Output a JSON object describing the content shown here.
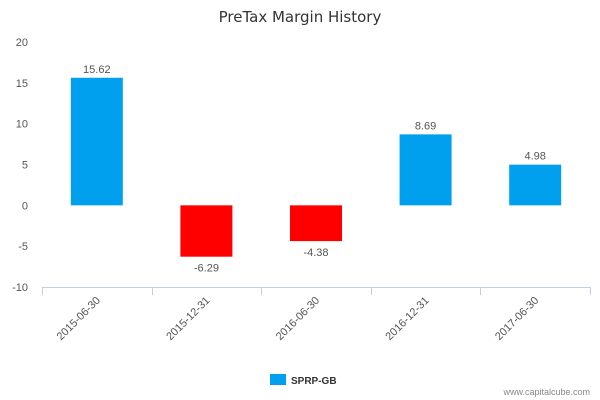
{
  "chart_data": {
    "type": "bar",
    "title": "PreTax Margin History",
    "categories": [
      "2015-06-30",
      "2015-12-31",
      "2016-06-30",
      "2016-12-31",
      "2017-06-30"
    ],
    "series": [
      {
        "name": "SPRP-GB",
        "values": [
          15.62,
          -6.29,
          -4.38,
          8.69,
          4.98
        ],
        "labels": [
          "15.62",
          "-6.29",
          "-4.38",
          "8.69",
          "4.98"
        ]
      }
    ],
    "ylim": [
      -10,
      20
    ],
    "yticks": [
      -10,
      -5,
      0,
      5,
      10,
      15,
      20
    ],
    "grid": false,
    "legend_position": "bottom-center",
    "colors": {
      "positive": "#00a0ef",
      "negative": "#ff0000",
      "legend_swatch": "#00a0ef",
      "axis": "#c0d0e0"
    }
  },
  "credit": "www.capitalcube.com"
}
